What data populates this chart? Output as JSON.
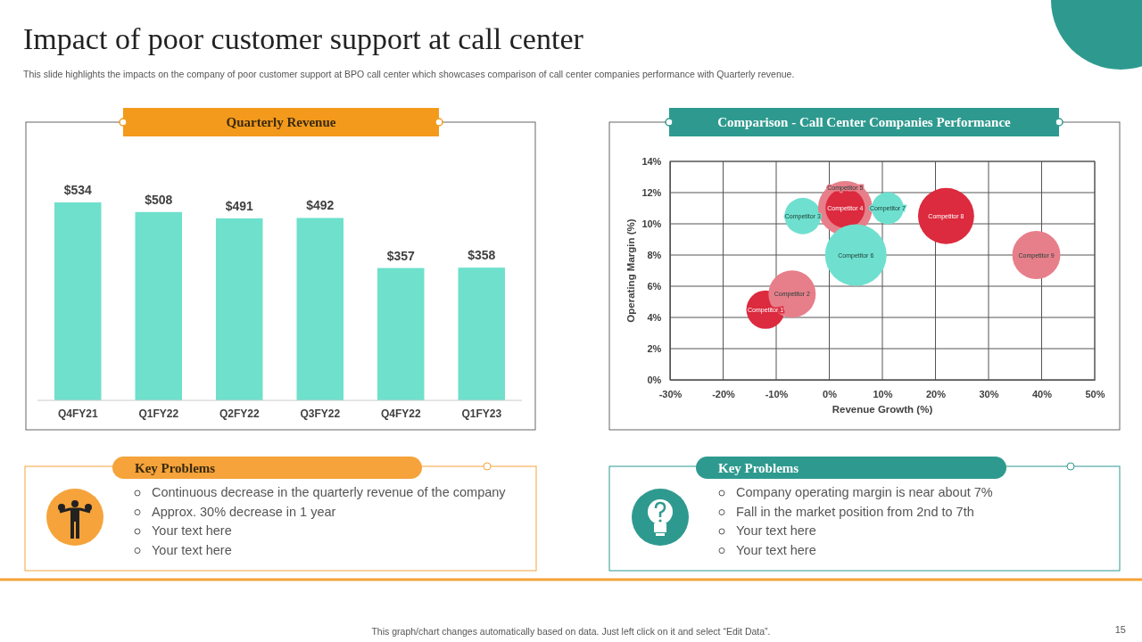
{
  "chart_data": [
    {
      "type": "other",
      "title": "Impact of poor customer support at call center",
      "subtitle": "This slide highlights the impacts on the company of poor customer support at BPO call center which showcases comparison of call center companies performance with Quarterly revenue.",
      "annotations": [
        "This graph/chart changes automatically based on data. Just left click on it and select “Edit Data”.",
        "15"
      ]
    },
    {
      "type": "bar",
      "title": "Quarterly Revenue",
      "categories": [
        "Q4FY21",
        "Q1FY22",
        "Q2FY22",
        "Q3FY22",
        "Q4FY22",
        "Q1FY23"
      ],
      "values": [
        534,
        508,
        491,
        492,
        357,
        358
      ],
      "value_labels": [
        "$534",
        "$508",
        "$491",
        "$492",
        "$357",
        "$358"
      ],
      "color": "#6ee0cc"
    },
    {
      "type": "bubble",
      "title": "Comparison - Call Center Companies Performance",
      "xlabel": "Revenue Growth (%)",
      "ylabel": "Operating Margin (%)",
      "xlim": [
        -30,
        50
      ],
      "xticks": [
        {
          "value": -30,
          "label": "-30%"
        },
        {
          "value": -20,
          "label": "-20%"
        },
        {
          "value": -10,
          "label": "-10%"
        },
        {
          "value": 0,
          "label": "0%"
        },
        {
          "value": 10,
          "label": "10%"
        },
        {
          "value": 20,
          "label": "20%"
        },
        {
          "value": 30,
          "label": "30%"
        },
        {
          "value": 40,
          "label": "40%"
        },
        {
          "value": 50,
          "label": "50%"
        }
      ],
      "ylim": [
        0,
        14
      ],
      "yticks": [
        {
          "value": 0,
          "label": "0%"
        },
        {
          "value": 2,
          "label": "2%"
        },
        {
          "value": 4,
          "label": "4%"
        },
        {
          "value": 6,
          "label": "6%"
        },
        {
          "value": 8,
          "label": "8%"
        },
        {
          "value": 10,
          "label": "10%"
        },
        {
          "value": 12,
          "label": "12%"
        },
        {
          "value": 14,
          "label": "14%"
        }
      ],
      "grid": true,
      "series": [
        {
          "name": "Competitor 1",
          "color": "#dc2a3e",
          "x": [
            -12
          ],
          "values": [
            4.5
          ],
          "sizes": [
            0.39
          ]
        },
        {
          "name": "Competitor 2",
          "color": "#e77f8a",
          "x": [
            -7
          ],
          "values": [
            5.5
          ],
          "sizes": [
            0.59
          ]
        },
        {
          "name": "Competitor 3",
          "color": "#6fe0cf",
          "x": [
            -5
          ],
          "values": [
            10.5
          ],
          "sizes": [
            0.35
          ]
        },
        {
          "name": "Competitor 5",
          "color": "#e77f8a",
          "x": [
            3
          ],
          "values": [
            11
          ],
          "sizes": [
            0.78
          ]
        },
        {
          "name": "Competitor 4",
          "color": "#dc2a3e",
          "x": [
            3
          ],
          "values": [
            11
          ],
          "sizes": [
            0.41
          ]
        },
        {
          "name": "Competitor 6",
          "color": "#6fe0cf",
          "x": [
            5
          ],
          "values": [
            8
          ],
          "sizes": [
            1
          ]
        },
        {
          "name": "Competitor 7",
          "color": "#6fe0cf",
          "x": [
            11
          ],
          "values": [
            11
          ],
          "sizes": [
            0.27
          ]
        },
        {
          "name": "Competitor 8",
          "color": "#dc2a3e",
          "x": [
            22
          ],
          "values": [
            10.5
          ],
          "sizes": [
            0.83
          ]
        },
        {
          "name": "Competitor 9",
          "color": "#e77f8a",
          "x": [
            39
          ],
          "values": [
            8
          ],
          "sizes": [
            0.61
          ]
        }
      ]
    },
    {
      "type": "other",
      "title": "Key Problems",
      "annotations": [
        "Continuous decrease in the quarterly revenue of the company",
        "Approx. 30% decrease in 1 year",
        "Your text here",
        "Your text here"
      ]
    },
    {
      "type": "other",
      "title": "Key Problems",
      "annotations": [
        "Company operating margin is near about 7%",
        "Fall in the market position from 2nd to 7th",
        "Your text here",
        "Your text here"
      ]
    }
  ]
}
